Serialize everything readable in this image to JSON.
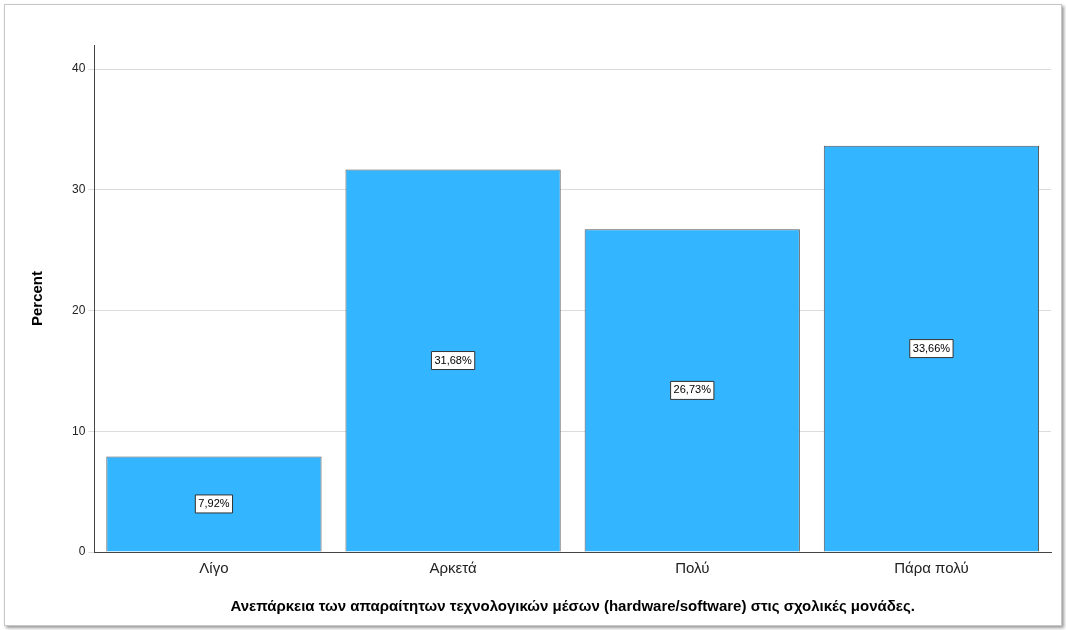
{
  "chart_data": {
    "type": "bar",
    "xlabel": "Ανεπάρκεια των απαραίτητων τεχνολογικών μέσων (hardware/software) στις σχολικές μονάδες.",
    "ylabel": "Percent",
    "categories": [
      "Λίγο",
      "Αρκετά",
      "Πολύ",
      "Πάρα πολύ"
    ],
    "values": [
      7.92,
      31.68,
      26.73,
      33.66
    ],
    "value_labels": [
      "7,92%",
      "31,68%",
      "26,73%",
      "33,66%"
    ],
    "color": "#33b5ff",
    "ylim": [
      0,
      42
    ],
    "yticks": [
      0,
      10,
      20,
      30,
      40
    ],
    "grid": "y",
    "legend": false
  }
}
